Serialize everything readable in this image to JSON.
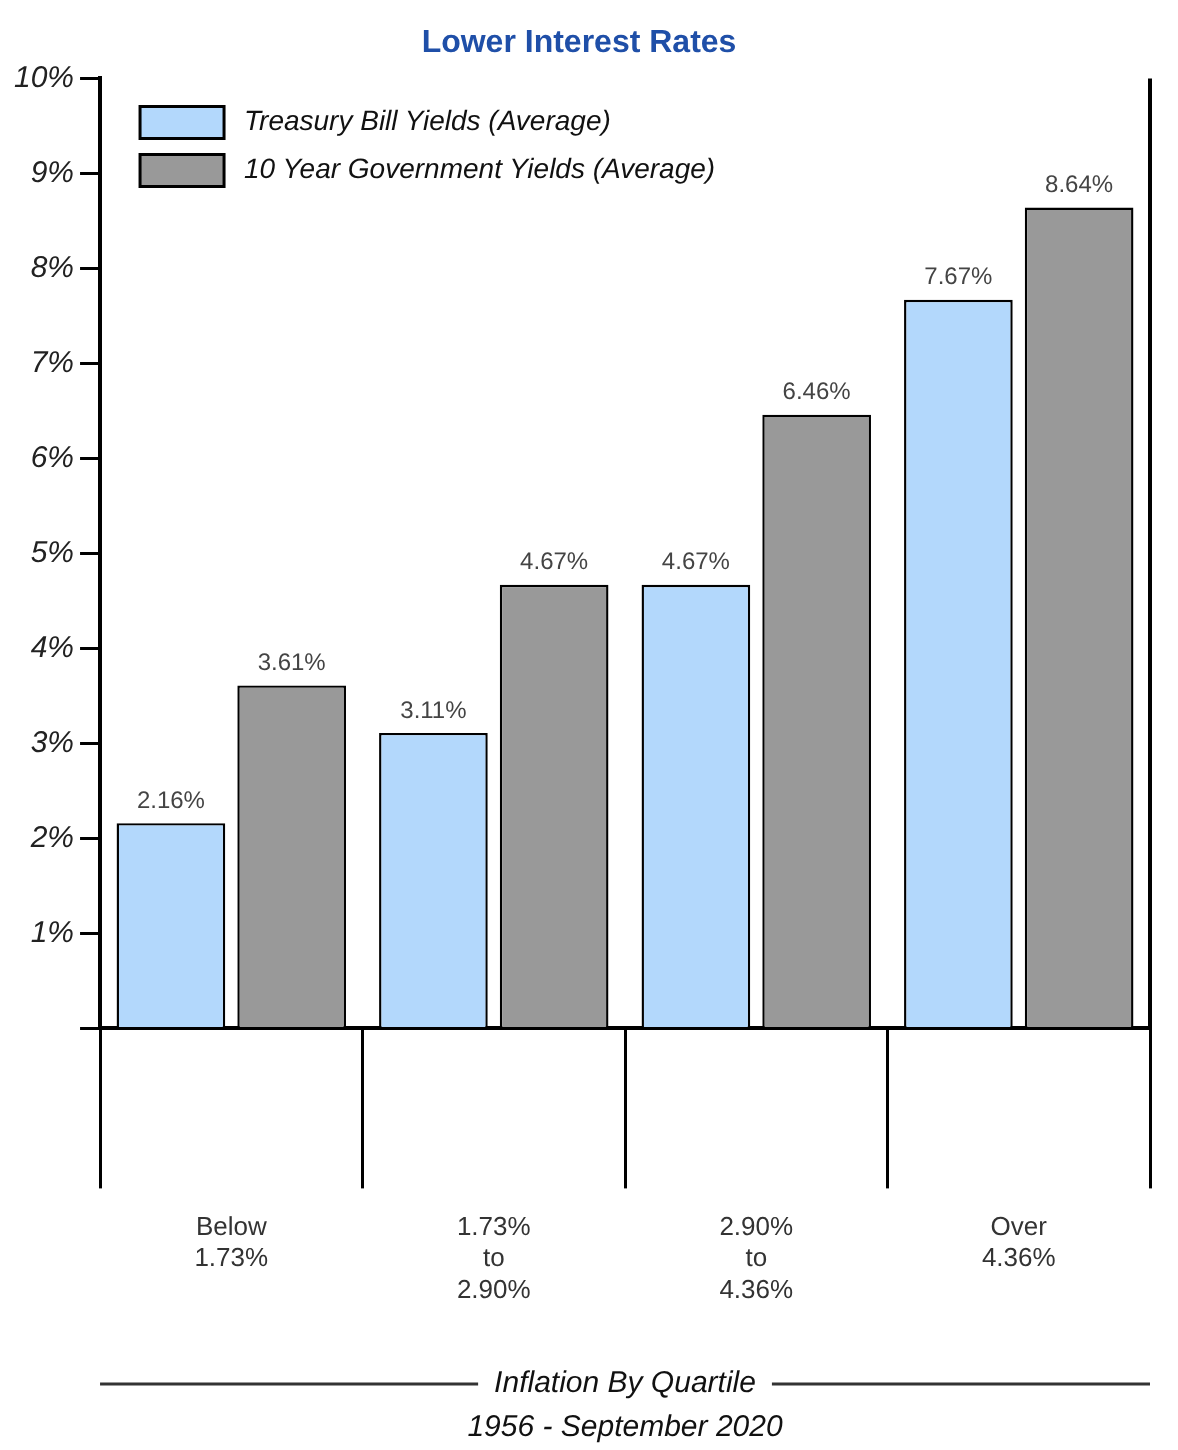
{
  "chart_data": {
    "type": "bar",
    "title": "Lower Interest Rates",
    "xlabel": "Inflation By Quartile",
    "annotations": [
      "1956 - September 2020"
    ],
    "categories": [
      "Below\n1.73%",
      "1.73%\nto\n2.90%",
      "2.90%\nto\n4.36%",
      "Over\n4.36%"
    ],
    "series": [
      {
        "name": "Treasury Bill Yields (Average)",
        "color": "#b3d8fc",
        "values": [
          2.16,
          3.11,
          4.67,
          7.67
        ],
        "value_labels": [
          "2.16%",
          "3.11%",
          "4.67%",
          "7.67%"
        ]
      },
      {
        "name": "10 Year Government Yields (Average)",
        "color": "#999999",
        "values": [
          3.61,
          4.67,
          6.46,
          8.64
        ],
        "value_labels": [
          "3.61%",
          "4.67%",
          "6.46%",
          "8.64%"
        ]
      }
    ],
    "ylim": [
      0,
      10
    ],
    "yticks": [
      {
        "value": 0,
        "label": null
      },
      {
        "value": 1,
        "label": "1%"
      },
      {
        "value": 2,
        "label": "2%"
      },
      {
        "value": 3,
        "label": "3%"
      },
      {
        "value": 4,
        "label": "4%"
      },
      {
        "value": 5,
        "label": "5%"
      },
      {
        "value": 6,
        "label": "6%"
      },
      {
        "value": 7,
        "label": "7%"
      },
      {
        "value": 8,
        "label": "8%"
      },
      {
        "value": 9,
        "label": "9%"
      },
      {
        "value": 10,
        "label": "10%"
      }
    ],
    "grid": false,
    "legend": "top left"
  }
}
